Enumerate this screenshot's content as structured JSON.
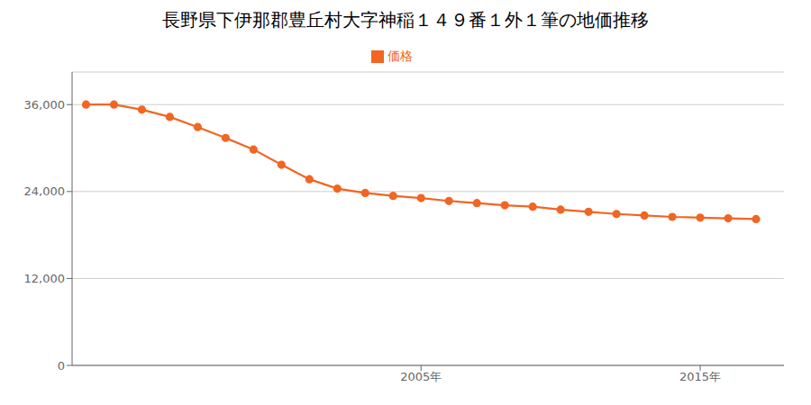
{
  "chart_data": {
    "type": "line",
    "title": "長野県下伊那郡豊丘村大字神稲１４９番１外１筆の地価推移",
    "x": [
      1993,
      1994,
      1995,
      1996,
      1997,
      1998,
      1999,
      2000,
      2001,
      2002,
      2003,
      2004,
      2005,
      2006,
      2007,
      2008,
      2009,
      2010,
      2011,
      2012,
      2013,
      2014,
      2015,
      2016,
      2017
    ],
    "series": [
      {
        "name": "価格",
        "color": "#f26522",
        "values": [
          36000,
          36000,
          35300,
          34300,
          32900,
          31400,
          29800,
          27700,
          25700,
          24400,
          23800,
          23400,
          23100,
          22700,
          22400,
          22100,
          21900,
          21500,
          21200,
          20900,
          20700,
          20500,
          20400,
          20300,
          20200
        ]
      }
    ],
    "xlim": [
      1992.5,
      2018
    ],
    "xticks": [
      {
        "value": 2005,
        "label": "2005年"
      },
      {
        "value": 2015,
        "label": "2015年"
      }
    ],
    "ylim": [
      0,
      40500
    ],
    "yticks": [
      0,
      {
        "value": 12000,
        "label": "12,000"
      },
      {
        "value": 24000,
        "label": "24,000"
      },
      {
        "value": 36000,
        "label": "36,000"
      }
    ],
    "grid": true,
    "legend": "top",
    "marker": "circle"
  }
}
